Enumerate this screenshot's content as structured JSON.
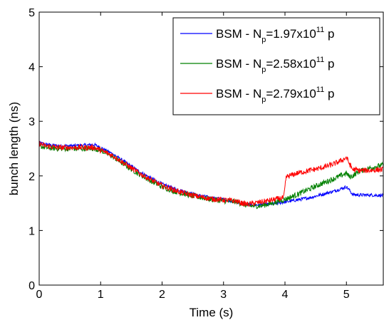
{
  "chart_data": {
    "type": "line",
    "title": "",
    "xlabel": "Time (s)",
    "ylabel": "bunch length (ns)",
    "xlim": [
      0,
      5.6
    ],
    "ylim": [
      0,
      5
    ],
    "xticks": [
      0,
      1,
      2,
      3,
      4,
      5
    ],
    "yticks": [
      0,
      1,
      2,
      3,
      4,
      5
    ],
    "grid": false,
    "legend_position": "top-right",
    "series": [
      {
        "label_prefix": "BSM - N",
        "label_sub": "p",
        "label_mid": "=1.97x10",
        "label_sup": "11",
        "label_suffix": " p",
        "color": "#0000ff",
        "noise": 0.03,
        "x": [
          0,
          0.1,
          0.3,
          0.5,
          0.7,
          0.9,
          1.0,
          1.2,
          1.4,
          1.6,
          1.8,
          2.0,
          2.2,
          2.4,
          2.6,
          2.8,
          3.0,
          3.2,
          3.4,
          3.6,
          3.8,
          4.0,
          4.2,
          4.4,
          4.6,
          4.8,
          5.0,
          5.05,
          5.1,
          5.2,
          5.4,
          5.6
        ],
        "y": [
          2.6,
          2.58,
          2.55,
          2.55,
          2.56,
          2.57,
          2.52,
          2.4,
          2.25,
          2.1,
          1.97,
          1.85,
          1.77,
          1.7,
          1.64,
          1.6,
          1.57,
          1.53,
          1.47,
          1.47,
          1.49,
          1.52,
          1.56,
          1.6,
          1.66,
          1.72,
          1.8,
          1.74,
          1.66,
          1.65,
          1.65,
          1.64
        ]
      },
      {
        "label_prefix": "BSM - N",
        "label_sub": "p",
        "label_mid": "=2.58x10",
        "label_sup": "11",
        "label_suffix": " p",
        "color": "#008000",
        "noise": 0.05,
        "x": [
          0,
          0.1,
          0.3,
          0.5,
          0.7,
          0.9,
          1.0,
          1.2,
          1.4,
          1.6,
          1.8,
          2.0,
          2.2,
          2.4,
          2.6,
          2.8,
          3.0,
          3.2,
          3.4,
          3.6,
          3.8,
          4.0,
          4.2,
          4.4,
          4.6,
          4.8,
          5.0,
          5.05,
          5.1,
          5.2,
          5.4,
          5.6
        ],
        "y": [
          2.55,
          2.52,
          2.5,
          2.5,
          2.5,
          2.5,
          2.47,
          2.35,
          2.2,
          2.05,
          1.92,
          1.8,
          1.72,
          1.66,
          1.61,
          1.57,
          1.54,
          1.53,
          1.45,
          1.45,
          1.5,
          1.57,
          1.66,
          1.76,
          1.86,
          1.95,
          2.05,
          1.98,
          2.0,
          2.08,
          2.15,
          2.2
        ]
      },
      {
        "label_prefix": "BSM - N",
        "label_sub": "p",
        "label_mid": "=2.79x10",
        "label_sup": "11",
        "label_suffix": " p",
        "color": "#ff0000",
        "noise": 0.05,
        "x": [
          0,
          0.1,
          0.3,
          0.5,
          0.7,
          0.9,
          1.0,
          1.2,
          1.4,
          1.6,
          1.8,
          2.0,
          2.2,
          2.4,
          2.6,
          2.8,
          3.0,
          3.2,
          3.3,
          3.4,
          3.6,
          3.8,
          3.98,
          4.02,
          4.2,
          4.4,
          4.6,
          4.8,
          4.95,
          5.0,
          5.05,
          5.1,
          5.2,
          5.4,
          5.6
        ],
        "y": [
          2.6,
          2.55,
          2.52,
          2.52,
          2.52,
          2.52,
          2.47,
          2.37,
          2.22,
          2.07,
          1.94,
          1.82,
          1.74,
          1.67,
          1.62,
          1.58,
          1.56,
          1.54,
          1.5,
          1.48,
          1.52,
          1.56,
          1.6,
          1.98,
          2.05,
          2.1,
          2.15,
          2.22,
          2.3,
          2.34,
          2.22,
          2.12,
          2.1,
          2.1,
          2.12
        ]
      }
    ]
  }
}
